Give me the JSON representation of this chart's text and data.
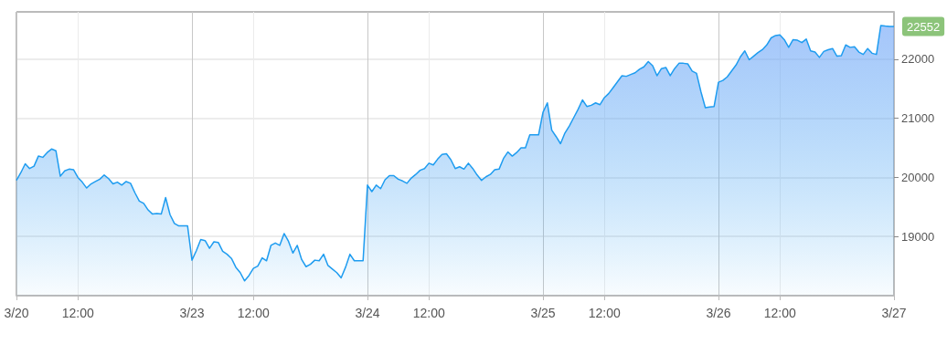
{
  "chart_data": {
    "type": "area",
    "categories": [
      "3/20",
      null,
      null,
      null,
      null,
      null,
      null,
      null,
      null,
      null,
      null,
      null,
      null,
      null,
      "12:00",
      null,
      null,
      null,
      null,
      null,
      null,
      null,
      null,
      null,
      null,
      null,
      null,
      null,
      null,
      null,
      null,
      null,
      null,
      null,
      null,
      null,
      null,
      null,
      null,
      null,
      "3/23",
      null,
      null,
      null,
      null,
      null,
      null,
      null,
      null,
      null,
      null,
      null,
      null,
      null,
      "12:00",
      null,
      null,
      null,
      null,
      null,
      null,
      null,
      null,
      null,
      null,
      null,
      null,
      null,
      null,
      null,
      null,
      null,
      null,
      null,
      null,
      null,
      null,
      null,
      null,
      null,
      "3/24",
      null,
      null,
      null,
      null,
      null,
      null,
      null,
      null,
      null,
      null,
      null,
      null,
      null,
      "12:00",
      null,
      null,
      null,
      null,
      null,
      null,
      null,
      null,
      null,
      null,
      null,
      null,
      null,
      null,
      null,
      null,
      null,
      null,
      null,
      null,
      null,
      null,
      null,
      null,
      null,
      "3/25",
      null,
      null,
      null,
      null,
      null,
      null,
      null,
      null,
      null,
      null,
      null,
      null,
      null,
      "12:00",
      null,
      null,
      null,
      null,
      null,
      null,
      null,
      null,
      null,
      null,
      null,
      null,
      null,
      null,
      null,
      null,
      null,
      null,
      null,
      null,
      null,
      null,
      null,
      null,
      null,
      "3/26",
      null,
      null,
      null,
      null,
      null,
      null,
      null,
      null,
      null,
      null,
      null,
      null,
      null,
      "12:00",
      null,
      null,
      null,
      null,
      null,
      null,
      null,
      null,
      null,
      null,
      null,
      null,
      null,
      null,
      null,
      null,
      null,
      null,
      null,
      null,
      null,
      null,
      null,
      null,
      null,
      "3/27"
    ],
    "series": [
      {
        "color": "#1e9cf0",
        "values": [
          19950,
          20080,
          20230,
          20150,
          20190,
          20360,
          20340,
          20420,
          20480,
          20450,
          20020,
          20110,
          20140,
          20130,
          20000,
          19920,
          19820,
          19890,
          19930,
          19970,
          20040,
          19980,
          19890,
          19920,
          19870,
          19930,
          19900,
          19740,
          19600,
          19560,
          19450,
          19380,
          19390,
          19380,
          19660,
          19370,
          19220,
          19180,
          19180,
          19180,
          18600,
          18760,
          18950,
          18930,
          18800,
          18910,
          18900,
          18750,
          18700,
          18630,
          18480,
          18390,
          18250,
          18340,
          18460,
          18500,
          18640,
          18590,
          18850,
          18890,
          18850,
          19050,
          18920,
          18720,
          18850,
          18610,
          18490,
          18530,
          18600,
          18590,
          18700,
          18510,
          18450,
          18390,
          18300,
          18480,
          18700,
          18590,
          18590,
          18590,
          19870,
          19760,
          19870,
          19810,
          19960,
          20030,
          20030,
          19970,
          19940,
          19900,
          19990,
          20050,
          20120,
          20150,
          20240,
          20210,
          20310,
          20390,
          20400,
          20300,
          20150,
          20180,
          20140,
          20240,
          20150,
          20040,
          19950,
          20010,
          20050,
          20130,
          20140,
          20320,
          20430,
          20360,
          20420,
          20500,
          20500,
          20720,
          20720,
          20720,
          21100,
          21260,
          20800,
          20690,
          20570,
          20750,
          20870,
          21010,
          21150,
          21310,
          21200,
          21220,
          21260,
          21230,
          21350,
          21420,
          21520,
          21620,
          21720,
          21710,
          21740,
          21770,
          21830,
          21870,
          21960,
          21890,
          21720,
          21840,
          21860,
          21720,
          21840,
          21930,
          21930,
          21920,
          21800,
          21760,
          21450,
          21180,
          21190,
          21200,
          21610,
          21640,
          21700,
          21800,
          21900,
          22040,
          22140,
          21990,
          22050,
          22110,
          22160,
          22240,
          22360,
          22400,
          22410,
          22330,
          22200,
          22330,
          22320,
          22280,
          22340,
          22140,
          22120,
          22030,
          22130,
          22160,
          22180,
          22050,
          22060,
          22240,
          22200,
          22210,
          22120,
          22080,
          22180,
          22100,
          22080,
          22570,
          22560,
          22552,
          22552
        ]
      }
    ],
    "ylim": [
      18000,
      22800
    ],
    "yticks": [
      19000,
      20000,
      21000,
      22000
    ],
    "grid": true,
    "marker": "none",
    "annotations": [
      "22552"
    ]
  }
}
